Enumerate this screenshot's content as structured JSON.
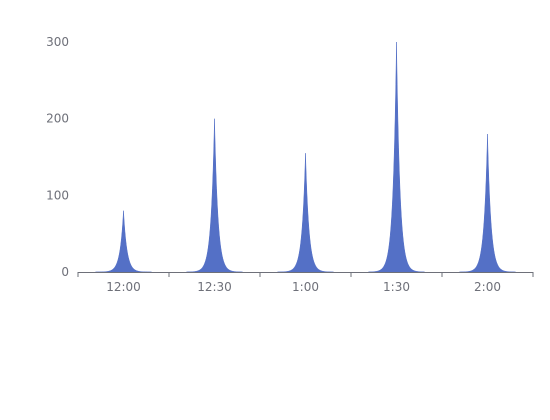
{
  "chart_data": {
    "type": "area",
    "x": [
      "12:00",
      "12:30",
      "1:00",
      "1:30",
      "2:00"
    ],
    "series": [
      {
        "values": [
          80,
          200,
          155,
          300,
          180
        ],
        "color": "#5470c6"
      }
    ],
    "ylim": [
      0,
      300
    ],
    "yticks": [
      0,
      100,
      200,
      300
    ],
    "grid": false,
    "axis_color": "#6e7079"
  }
}
